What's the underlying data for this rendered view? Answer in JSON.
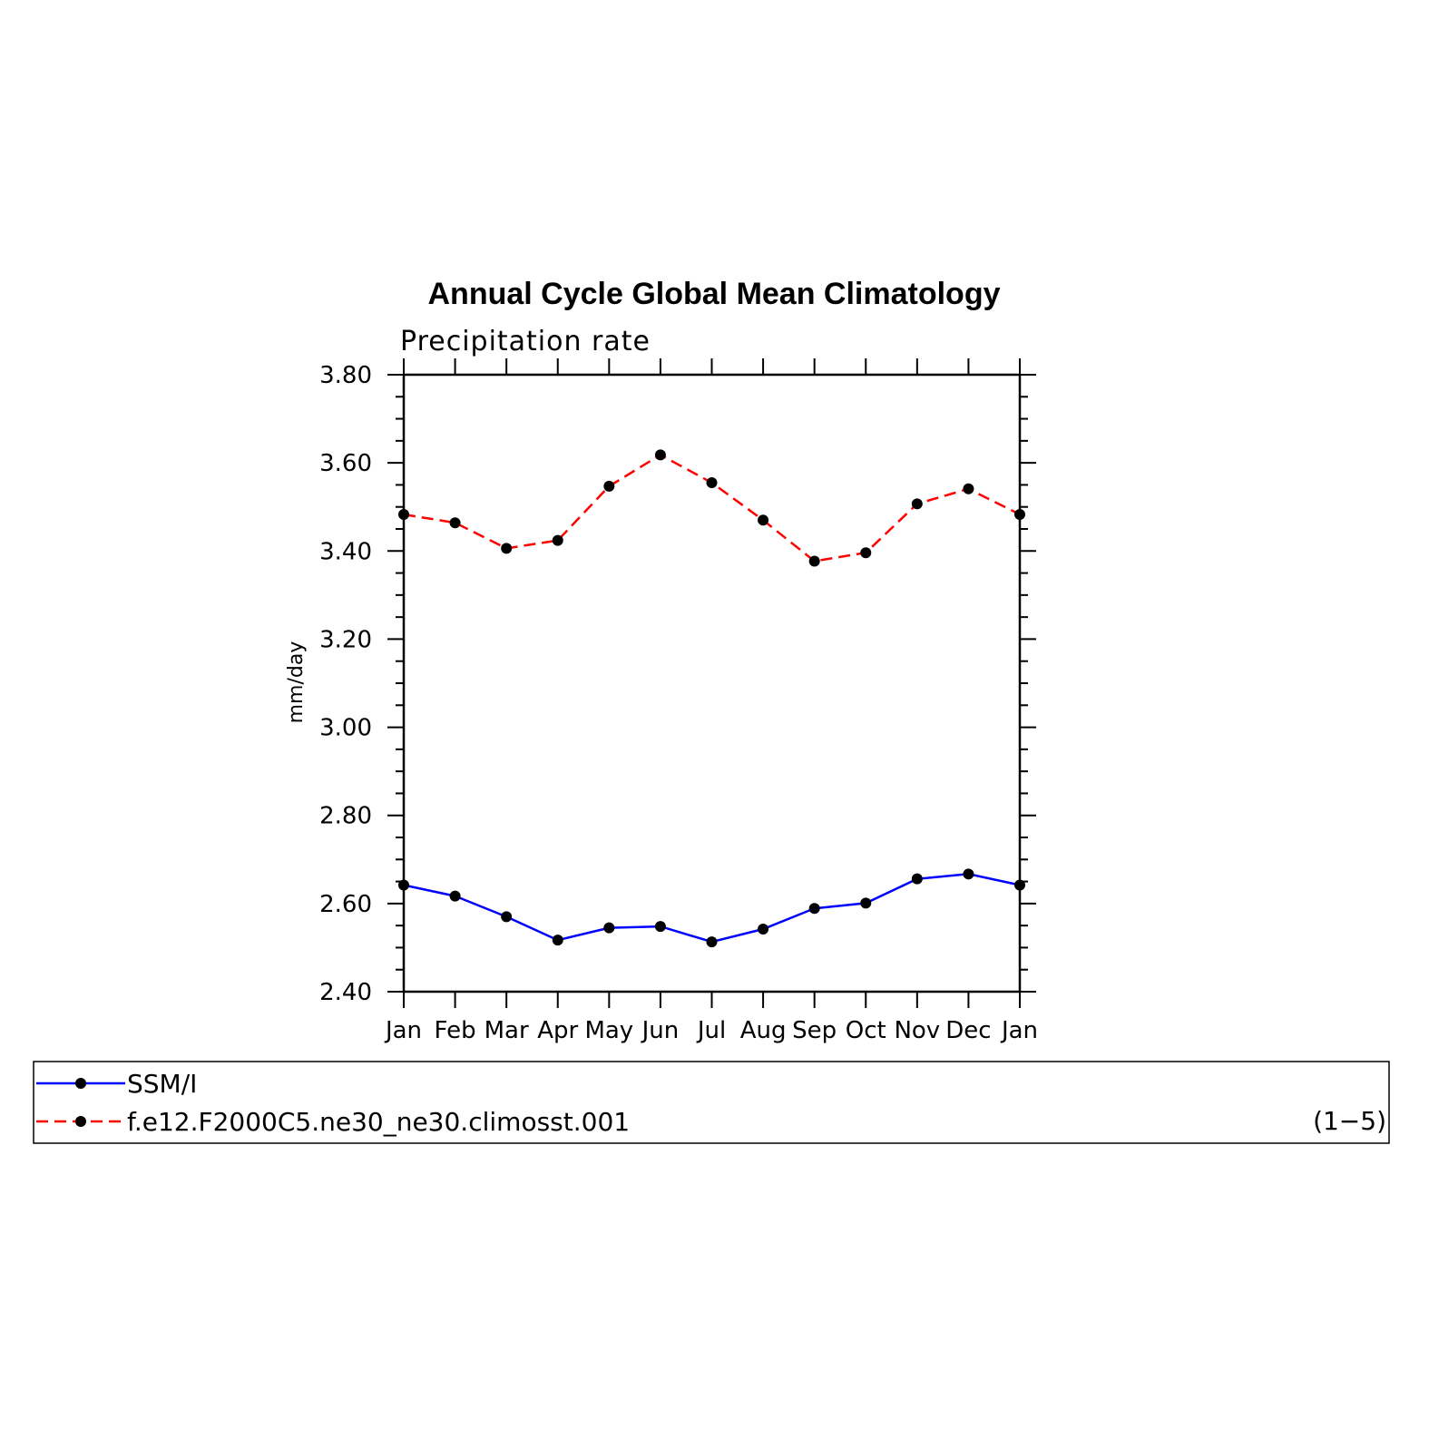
{
  "chart_data": {
    "type": "line",
    "title": "Annual Cycle Global Mean Climatology",
    "subtitle": "Precipitation rate",
    "xlabel": "",
    "ylabel": "mm/day",
    "categories": [
      "Jan",
      "Feb",
      "Mar",
      "Apr",
      "May",
      "Jun",
      "Jul",
      "Aug",
      "Sep",
      "Oct",
      "Nov",
      "Dec",
      "Jan"
    ],
    "ylim": [
      2.4,
      3.8
    ],
    "yticks": [
      "2.40",
      "2.60",
      "2.80",
      "3.00",
      "3.20",
      "3.40",
      "3.60",
      "3.80"
    ],
    "series": [
      {
        "name": "SSM/I",
        "color": "#0000ff",
        "dash": "solid",
        "values": [
          2.642,
          2.617,
          2.57,
          2.517,
          2.545,
          2.548,
          2.513,
          2.542,
          2.589,
          2.601,
          2.656,
          2.667,
          2.642
        ]
      },
      {
        "name": "f.e12.F2000C5.ne30_ne30.climosst.001",
        "color": "#ff0000",
        "dash": "dashed",
        "values": [
          3.483,
          3.464,
          3.406,
          3.424,
          3.547,
          3.618,
          3.555,
          3.47,
          3.377,
          3.396,
          3.507,
          3.541,
          3.483
        ]
      }
    ],
    "grid": false,
    "legend_position": "bottom",
    "annotation": "(1−5)"
  }
}
